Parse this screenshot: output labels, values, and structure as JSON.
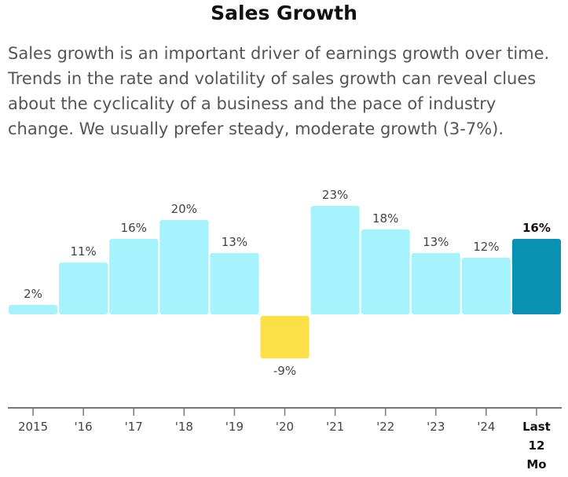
{
  "title": "Sales Growth",
  "description": "Sales growth is an important driver of earnings growth over time. Trends in the rate and volatility of sales growth can reveal clues about the cyclicality of a business and the pace of industry change. We usually prefer steady, moderate growth (3-7%).",
  "colors": {
    "positive": "#a5f3fc",
    "negative": "#fde047",
    "highlight": "#0891b2",
    "axis": "#777777"
  },
  "chart_data": {
    "type": "bar",
    "title": "Sales Growth",
    "xlabel": "",
    "ylabel": "",
    "ylim": [
      -20,
      25
    ],
    "grid": false,
    "categories": [
      "2015",
      "'16",
      "'17",
      "'18",
      "'19",
      "'20",
      "'21",
      "'22",
      "'23",
      "'24",
      "Last 12 Mo"
    ],
    "category_lines": [
      [
        "2015"
      ],
      [
        "'16"
      ],
      [
        "'17"
      ],
      [
        "'18"
      ],
      [
        "'19"
      ],
      [
        "'20"
      ],
      [
        "'21"
      ],
      [
        "'22"
      ],
      [
        "'23"
      ],
      [
        "'24"
      ],
      [
        "Last",
        "12",
        "Mo"
      ]
    ],
    "values": [
      2,
      11,
      16,
      20,
      13,
      -9,
      23,
      18,
      13,
      12,
      16
    ],
    "labels": [
      "2%",
      "11%",
      "16%",
      "20%",
      "13%",
      "-9%",
      "23%",
      "18%",
      "13%",
      "12%",
      "16%"
    ],
    "highlight_index": 10
  }
}
